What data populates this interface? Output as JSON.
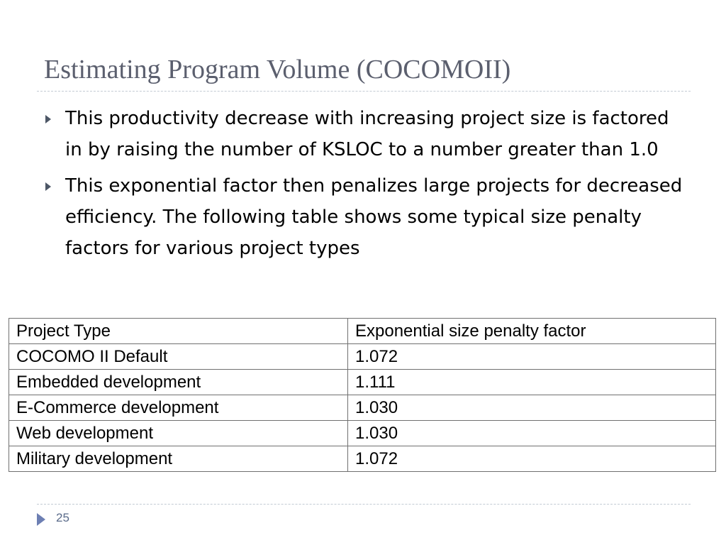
{
  "slide": {
    "title": "Estimating Program Volume (COCOMOII)",
    "bullet_icon": "triangle-right-icon",
    "bullets": [
      "This productivity decrease with increasing project size is factored in by raising the number of KSLOC to a number greater than 1.0",
      "This exponential factor then penalizes large projects for decreased efficiency. The following table shows some typical size penalty factors for various project types"
    ]
  },
  "table": {
    "headers": [
      "Project Type",
      "Exponential size penalty factor"
    ],
    "rows": [
      [
        "COCOMO II Default",
        "1.072"
      ],
      [
        "Embedded development",
        "1.111"
      ],
      [
        "E-Commerce development",
        "1.030"
      ],
      [
        "Web development",
        "1.030"
      ],
      [
        "Military development",
        "1.072"
      ]
    ]
  },
  "footer": {
    "page_number": "25",
    "arrow_icon": "triangle-right-icon"
  },
  "colors": {
    "title": "#5b5f6e",
    "body_text": "#000000",
    "table_border": "#707070",
    "footer_arrow": "#6d7fb3",
    "rule": "#c3cbd4"
  }
}
